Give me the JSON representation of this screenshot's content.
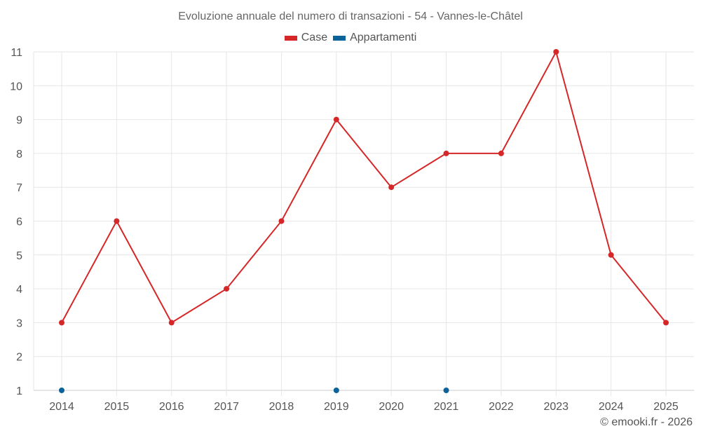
{
  "chart_data": {
    "type": "line",
    "title": "Evoluzione annuale del numero di transazioni - 54 - Vannes-le-Châtel",
    "xlabel": "",
    "ylabel": "",
    "categories": [
      "2014",
      "2015",
      "2016",
      "2017",
      "2018",
      "2019",
      "2020",
      "2021",
      "2022",
      "2023",
      "2024",
      "2025"
    ],
    "series": [
      {
        "name": "Case",
        "color": "#d62728",
        "values": [
          3,
          6,
          3,
          4,
          6,
          9,
          7,
          8,
          8,
          11,
          5,
          3
        ]
      },
      {
        "name": "Appartamenti",
        "color": "#0b6399",
        "values": [
          1,
          null,
          null,
          null,
          null,
          1,
          null,
          1,
          null,
          null,
          null,
          null
        ]
      }
    ],
    "ylim": [
      1,
      11
    ],
    "yticks": [
      1,
      2,
      3,
      4,
      5,
      6,
      7,
      8,
      9,
      10,
      11
    ],
    "grid": true,
    "legend_position": "top"
  },
  "title": "Evoluzione annuale del numero di transazioni - 54 - Vannes-le-Châtel",
  "legend": [
    {
      "label": "Case",
      "color": "#d62728"
    },
    {
      "label": "Appartamenti",
      "color": "#0b6399"
    }
  ],
  "credit": "© emooki.fr - 2026"
}
